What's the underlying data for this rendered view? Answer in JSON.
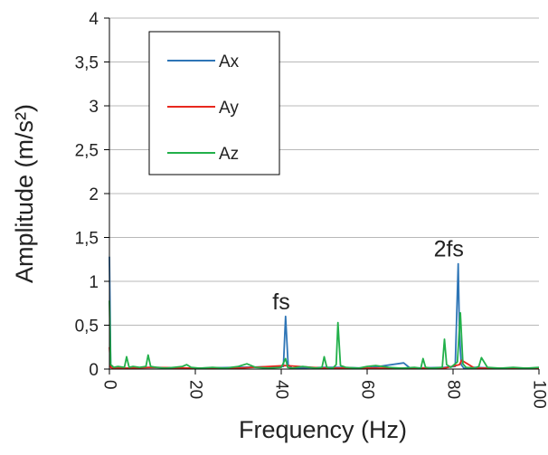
{
  "chart_data": {
    "type": "line",
    "title": "",
    "xlabel": "Frequency (Hz)",
    "ylabel": "Amplitude (m/s²)",
    "xlim": [
      0,
      100
    ],
    "ylim": [
      0,
      4
    ],
    "x_ticks": [
      0,
      20,
      40,
      60,
      80,
      100
    ],
    "x_tick_labels": [
      "0",
      "20",
      "40",
      "60",
      "80",
      "100"
    ],
    "y_ticks": [
      0,
      0.5,
      1,
      1.5,
      2,
      2.5,
      3,
      3.5,
      4
    ],
    "y_tick_labels": [
      "0",
      "0,5",
      "1",
      "1,5",
      "2",
      "2,5",
      "3",
      "3,5",
      "4"
    ],
    "grid": "horizontal",
    "legend_position": "top-left",
    "series": [
      {
        "name": "Ax",
        "color": "#2e75b6",
        "x": [
          0,
          0.3,
          0.8,
          1.5,
          4,
          9,
          20,
          30,
          40.5,
          41,
          41.6,
          42.5,
          50,
          53,
          60,
          68.5,
          70,
          78,
          80.5,
          81.2,
          81.5,
          81.9,
          82.5,
          85,
          90,
          100
        ],
        "y": [
          1.28,
          0.05,
          0.01,
          0.02,
          0.01,
          0.02,
          0.01,
          0.02,
          0.03,
          0.6,
          0.05,
          0.01,
          0.02,
          0.02,
          0.01,
          0.07,
          0.01,
          0.02,
          0.03,
          1.2,
          0.4,
          0.05,
          0.01,
          0.02,
          0.01,
          0.01
        ]
      },
      {
        "name": "Ay",
        "color": "#e8281e",
        "x": [
          0,
          0.3,
          0.8,
          5,
          10,
          20,
          30,
          41,
          50,
          60,
          70,
          78,
          81.5,
          82,
          85,
          90,
          100
        ],
        "y": [
          0.25,
          0.02,
          0.01,
          0.01,
          0.02,
          0.01,
          0.01,
          0.04,
          0.01,
          0.01,
          0.01,
          0.01,
          0.05,
          0.1,
          0.01,
          0.01,
          0.01
        ]
      },
      {
        "name": "Az",
        "color": "#22b04a",
        "x": [
          0,
          0.3,
          1,
          2,
          3.5,
          4,
          4.6,
          5.5,
          7,
          8.5,
          9,
          9.6,
          11,
          13,
          15,
          17,
          18,
          19,
          21,
          24,
          27,
          30,
          32,
          34,
          37,
          40,
          41,
          41.5,
          42.5,
          45,
          48,
          49.5,
          50,
          50.6,
          52,
          52.8,
          53.2,
          53.8,
          55,
          58,
          60,
          62,
          65,
          68,
          71,
          72.5,
          73,
          73.6,
          75,
          77.5,
          78,
          78.5,
          79.5,
          81,
          81.7,
          82.3,
          83,
          85,
          86,
          86.6,
          88,
          91,
          94,
          97,
          100
        ],
        "y": [
          0.78,
          0.05,
          0.02,
          0.03,
          0.02,
          0.14,
          0.02,
          0.03,
          0.02,
          0.03,
          0.16,
          0.03,
          0.02,
          0.01,
          0.02,
          0.03,
          0.05,
          0.02,
          0.01,
          0.02,
          0.01,
          0.03,
          0.06,
          0.02,
          0.01,
          0.02,
          0.12,
          0.02,
          0.01,
          0.03,
          0.01,
          0.02,
          0.14,
          0.02,
          0.01,
          0.05,
          0.53,
          0.04,
          0.02,
          0.01,
          0.03,
          0.04,
          0.02,
          0.01,
          0.02,
          0.01,
          0.12,
          0.02,
          0.01,
          0.02,
          0.34,
          0.05,
          0.02,
          0.08,
          0.64,
          0.06,
          0.02,
          0.01,
          0.03,
          0.13,
          0.02,
          0.01,
          0.02,
          0.01,
          0.02
        ]
      }
    ],
    "annotations": [
      {
        "text": "fs",
        "x": 40,
        "y": 0.6
      },
      {
        "text": "2fs",
        "x": 79,
        "y": 1.2
      }
    ]
  }
}
